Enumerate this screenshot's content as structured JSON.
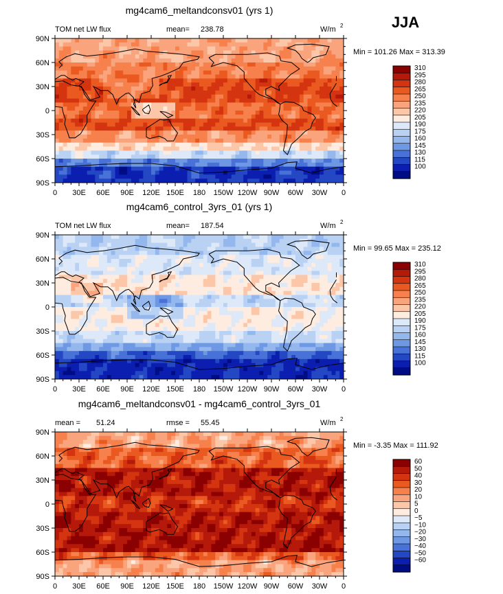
{
  "season": "JJA",
  "chart_data": [
    {
      "type": "heatmap",
      "title": "mg4cam6_meltandconsv01 (yrs 1)",
      "left_label": "TOM net LW flux",
      "stat_label": "mean=",
      "stat_value": "238.78",
      "units": "W/m",
      "units_sup": "2",
      "minmax": "Min = 101.26 Max = 313.39",
      "x_ticks": [
        "0",
        "30E",
        "60E",
        "90E",
        "120E",
        "150E",
        "180",
        "150W",
        "120W",
        "90W",
        "60W",
        "30W",
        "0"
      ],
      "y_ticks": [
        "90N",
        "60N",
        "30N",
        "0",
        "30S",
        "60S",
        "90S"
      ],
      "levels": [
        "310",
        "295",
        "280",
        "265",
        "250",
        "235",
        "220",
        "205",
        "190",
        "175",
        "160",
        "145",
        "130",
        "115",
        "100"
      ],
      "colors": [
        "#8b0000",
        "#b5190a",
        "#d43510",
        "#ea5a20",
        "#f7814d",
        "#f9a47c",
        "#fcc7a8",
        "#feece0",
        "#dde8f8",
        "#b9d2f4",
        "#94b8ee",
        "#6e98e4",
        "#4872d8",
        "#2448c4",
        "#0b1eb0",
        "#000c84"
      ]
    },
    {
      "type": "heatmap",
      "title": "mg4cam6_control_3yrs_01 (yrs 1)",
      "left_label": "TOM net LW flux",
      "stat_label": "mean=",
      "stat_value": "187.54",
      "units": "W/m",
      "units_sup": "2",
      "minmax": "Min = 99.65 Max = 235.12",
      "x_ticks": [
        "0",
        "30E",
        "60E",
        "90E",
        "120E",
        "150E",
        "180",
        "150W",
        "120W",
        "90W",
        "60W",
        "30W",
        "0"
      ],
      "y_ticks": [
        "90N",
        "60N",
        "30N",
        "0",
        "30S",
        "60S",
        "90S"
      ],
      "levels": [
        "310",
        "295",
        "280",
        "265",
        "250",
        "235",
        "220",
        "205",
        "190",
        "175",
        "160",
        "145",
        "130",
        "115",
        "100"
      ],
      "colors": [
        "#8b0000",
        "#b5190a",
        "#d43510",
        "#ea5a20",
        "#f7814d",
        "#f9a47c",
        "#fcc7a8",
        "#feece0",
        "#dde8f8",
        "#b9d2f4",
        "#94b8ee",
        "#6e98e4",
        "#4872d8",
        "#2448c4",
        "#0b1eb0",
        "#000c84"
      ]
    },
    {
      "type": "heatmap",
      "title": "mg4cam6_meltandconsv01 - mg4cam6_control_3yrs_01",
      "left_label": "mean =",
      "left_value": "51.24",
      "stat_label": "rmse =",
      "stat_value": "55.45",
      "units": "W/m",
      "units_sup": "2",
      "minmax": "Min = -3.35 Max = 111.92",
      "x_ticks": [
        "0",
        "30E",
        "60E",
        "90E",
        "120E",
        "150E",
        "180",
        "150W",
        "120W",
        "90W",
        "60W",
        "30W",
        "0"
      ],
      "y_ticks": [
        "90N",
        "60N",
        "30N",
        "0",
        "30S",
        "60S",
        "90S"
      ],
      "levels": [
        "60",
        "50",
        "40",
        "30",
        "20",
        "10",
        "5",
        "0",
        "−5",
        "−10",
        "−20",
        "−30",
        "−40",
        "−50",
        "−60"
      ],
      "colors": [
        "#8b0000",
        "#b5190a",
        "#d43510",
        "#ea5a20",
        "#f7814d",
        "#f9a47c",
        "#fcc7a8",
        "#feece0",
        "#dde8f8",
        "#b9d2f4",
        "#94b8ee",
        "#6e98e4",
        "#4872d8",
        "#2448c4",
        "#0b1eb0",
        "#000c84"
      ]
    }
  ]
}
